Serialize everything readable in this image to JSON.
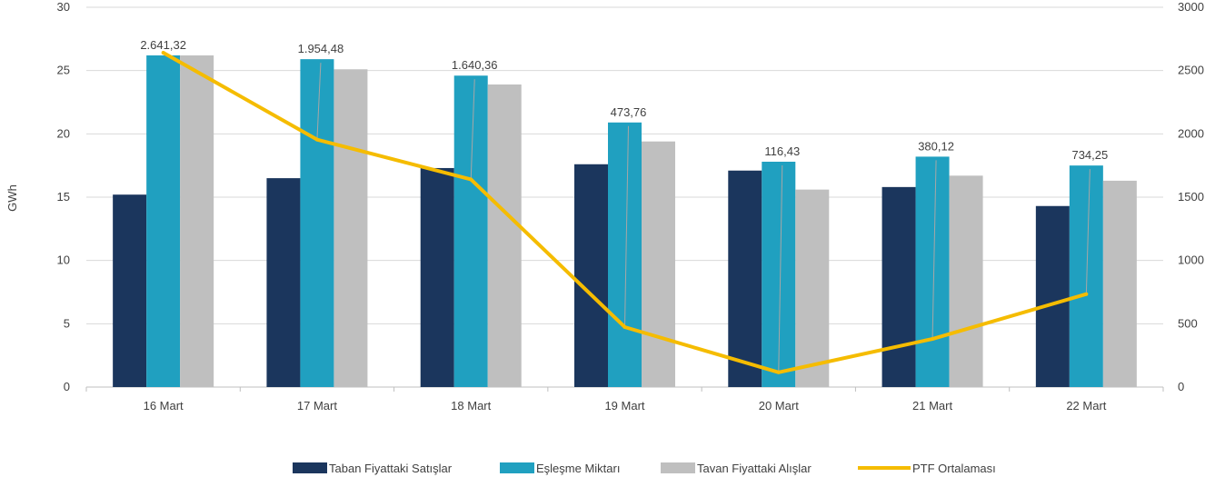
{
  "chart_data": {
    "type": "bar",
    "ylabel": "GWh",
    "categories": [
      "16 Mart",
      "17 Mart",
      "18 Mart",
      "19 Mart",
      "20 Mart",
      "21 Mart",
      "22 Mart"
    ],
    "ylim": [
      0,
      30
    ],
    "y_ticks": [
      "0",
      "5",
      "10",
      "15",
      "20",
      "25",
      "30"
    ],
    "y2lim": [
      0,
      3000
    ],
    "y2_ticks": [
      "0",
      "500",
      "1000",
      "1500",
      "2000",
      "2500",
      "3000"
    ],
    "grid": true,
    "legend_position": "bottom",
    "series": [
      {
        "name": "Taban Fiyattaki Satışlar",
        "type": "bar",
        "axis": "left",
        "color": "#1b365d",
        "values": [
          15.2,
          16.5,
          17.3,
          17.6,
          17.1,
          15.8,
          14.3
        ]
      },
      {
        "name": "Eşleşme Miktarı",
        "type": "bar",
        "axis": "left",
        "color": "#20a0c0",
        "values": [
          26.2,
          25.9,
          24.6,
          20.9,
          17.8,
          18.2,
          17.5
        ]
      },
      {
        "name": "Tavan Fiyattaki Alışlar",
        "type": "bar",
        "axis": "left",
        "color": "#bfbfbf",
        "values": [
          26.2,
          25.1,
          23.9,
          19.4,
          15.6,
          16.7,
          16.3
        ]
      },
      {
        "name": "PTF Ortalaması",
        "type": "line",
        "axis": "right",
        "color": "#f5bc00",
        "values": [
          2641.32,
          1954.48,
          1640.36,
          473.76,
          116.43,
          380.12,
          734.25
        ],
        "labels": [
          "2.641,32",
          "1.954,48",
          "1.640,36",
          "473,76",
          "116,43",
          "380,12",
          "734,25"
        ]
      }
    ]
  }
}
